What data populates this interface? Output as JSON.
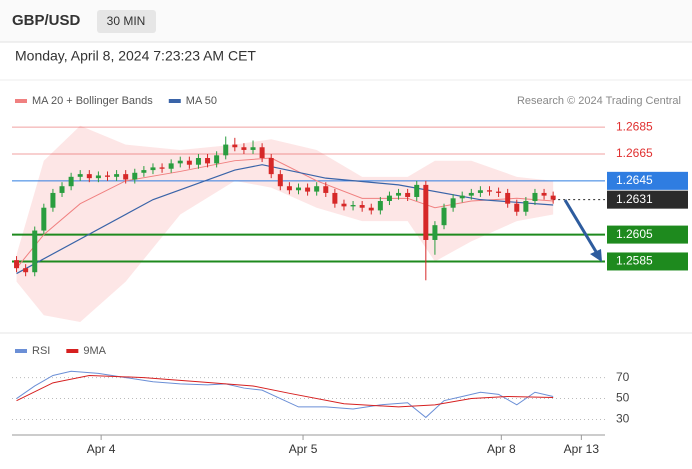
{
  "header": {
    "symbol": "GBP/USD",
    "interval": "30 MIN",
    "datetime": "Monday, April 8, 2024 7:23:23 AM CET"
  },
  "chart_data": [
    {
      "type": "candlestick",
      "source": "Research © 2024 Trading Central",
      "up_color": "#2a9d3f",
      "down_color": "#d62828",
      "x": [
        0,
        1,
        2,
        3,
        4,
        5,
        6,
        7,
        8,
        9,
        10,
        11,
        12,
        13,
        14,
        15,
        16,
        17,
        18,
        19,
        20,
        21,
        22,
        23,
        24,
        25,
        26,
        27,
        28,
        29,
        30,
        31,
        32,
        33,
        34,
        35,
        36,
        37,
        38,
        39,
        40,
        41,
        42,
        43,
        44,
        45,
        46,
        47,
        48,
        49,
        50,
        51,
        52,
        53,
        54,
        55,
        56,
        57,
        58,
        59
      ],
      "open": [
        1.2586,
        1.258,
        1.2577,
        1.2608,
        1.2625,
        1.2636,
        1.2641,
        1.2648,
        1.265,
        1.2647,
        1.2649,
        1.2648,
        1.265,
        1.2646,
        1.2651,
        1.2653,
        1.2655,
        1.2654,
        1.2658,
        1.266,
        1.2657,
        1.2662,
        1.2658,
        1.2664,
        1.2672,
        1.267,
        1.2668,
        1.267,
        1.2662,
        1.265,
        1.2641,
        1.2638,
        1.264,
        1.2637,
        1.2641,
        1.2636,
        1.2628,
        1.2626,
        1.2627,
        1.2625,
        1.2623,
        1.263,
        1.2634,
        1.2636,
        1.2633,
        1.2642,
        1.2601,
        1.2612,
        1.2625,
        1.2632,
        1.2634,
        1.2636,
        1.2638,
        1.2637,
        1.2636,
        1.2628,
        1.2622,
        1.263,
        1.2636,
        1.2634
      ],
      "high": [
        1.2589,
        1.2583,
        1.2611,
        1.2628,
        1.2639,
        1.2644,
        1.2651,
        1.2653,
        1.2653,
        1.2652,
        1.2652,
        1.2653,
        1.2653,
        1.2654,
        1.2656,
        1.2658,
        1.2658,
        1.2661,
        1.2663,
        1.2663,
        1.2665,
        1.2665,
        1.2667,
        1.2678,
        1.2677,
        1.2673,
        1.2675,
        1.2673,
        1.2665,
        1.2653,
        1.2644,
        1.2643,
        1.2643,
        1.2644,
        1.2644,
        1.2639,
        1.2631,
        1.263,
        1.263,
        1.2628,
        1.2633,
        1.2637,
        1.2639,
        1.2639,
        1.2645,
        1.2645,
        1.2615,
        1.2628,
        1.2635,
        1.2637,
        1.2639,
        1.2641,
        1.2641,
        1.264,
        1.2639,
        1.2631,
        1.2633,
        1.2639,
        1.2639,
        1.2637
      ],
      "low": [
        1.2577,
        1.2574,
        1.2574,
        1.2605,
        1.2622,
        1.2633,
        1.2638,
        1.2645,
        1.2644,
        1.2644,
        1.2645,
        1.2645,
        1.2643,
        1.2643,
        1.2648,
        1.265,
        1.2651,
        1.2651,
        1.2655,
        1.2654,
        1.2654,
        1.2655,
        1.2655,
        1.2661,
        1.2667,
        1.2665,
        1.2665,
        1.2659,
        1.2647,
        1.2638,
        1.2635,
        1.2635,
        1.2634,
        1.2634,
        1.2633,
        1.2625,
        1.2623,
        1.2623,
        1.2622,
        1.262,
        1.262,
        1.2627,
        1.2631,
        1.263,
        1.263,
        1.2571,
        1.259,
        1.2609,
        1.2622,
        1.2629,
        1.2631,
        1.2633,
        1.2634,
        1.2633,
        1.2625,
        1.2619,
        1.2619,
        1.2627,
        1.2631,
        1.2628
      ],
      "close": [
        1.258,
        1.2577,
        1.2608,
        1.2625,
        1.2636,
        1.2641,
        1.2648,
        1.265,
        1.2647,
        1.2649,
        1.2648,
        1.265,
        1.2646,
        1.2651,
        1.2653,
        1.2655,
        1.2654,
        1.2658,
        1.266,
        1.2657,
        1.2662,
        1.2658,
        1.2664,
        1.2672,
        1.267,
        1.2668,
        1.267,
        1.2662,
        1.265,
        1.2641,
        1.2638,
        1.264,
        1.2637,
        1.2641,
        1.2636,
        1.2628,
        1.2626,
        1.2627,
        1.2625,
        1.2623,
        1.263,
        1.2634,
        1.2636,
        1.2633,
        1.2642,
        1.2601,
        1.2612,
        1.2625,
        1.2632,
        1.2634,
        1.2636,
        1.2638,
        1.2637,
        1.2636,
        1.2628,
        1.2622,
        1.263,
        1.2636,
        1.2634,
        1.2631
      ],
      "series": [
        {
          "name": "MA 20 + Bollinger Bands",
          "color": "#f08080",
          "band_color": "#fde0e0",
          "x": [
            0,
            3,
            7,
            12,
            18,
            24,
            28,
            33,
            38,
            43,
            46,
            50,
            55,
            59
          ],
          "values": [
            1.258,
            1.2605,
            1.2628,
            1.2645,
            1.2652,
            1.266,
            1.2662,
            1.2645,
            1.2632,
            1.2632,
            1.2625,
            1.263,
            1.2632,
            1.263
          ],
          "upper": [
            1.259,
            1.266,
            1.2686,
            1.2672,
            1.2668,
            1.2672,
            1.2676,
            1.2668,
            1.2648,
            1.2648,
            1.266,
            1.266,
            1.2648,
            1.2645
          ],
          "lower": [
            1.257,
            1.2545,
            1.254,
            1.257,
            1.262,
            1.2645,
            1.264,
            1.2625,
            1.2615,
            1.2615,
            1.2585,
            1.26,
            1.2615,
            1.262
          ]
        },
        {
          "name": "MA 50",
          "color": "#3a64a8",
          "x": [
            0,
            15,
            24,
            27,
            34,
            42,
            51,
            59
          ],
          "values": [
            1.2576,
            1.2631,
            1.2653,
            1.2657,
            1.2647,
            1.2642,
            1.2631,
            1.2627
          ]
        }
      ],
      "levels": [
        {
          "value": 1.2685,
          "color": "#e03030",
          "boxed": false,
          "dashed": false
        },
        {
          "value": 1.2665,
          "color": "#e03030",
          "boxed": false,
          "dashed": false
        },
        {
          "value": 1.2645,
          "color": "#2f7de1",
          "boxed": true,
          "dashed": false
        },
        {
          "value": 1.2631,
          "color": "#2b2b2b",
          "boxed": true,
          "dashed": true
        },
        {
          "value": 1.2605,
          "color": "#1e8a1e",
          "boxed": true,
          "dashed": false
        },
        {
          "value": 1.2585,
          "color": "#1e8a1e",
          "boxed": true,
          "dashed": false
        }
      ],
      "xlim": [
        -0.5,
        64.7
      ],
      "ylim": [
        1.2534,
        1.2694
      ],
      "xticks": [
        {
          "value": 9.3,
          "label": "Apr 4"
        },
        {
          "value": 31.5,
          "label": "Apr 5"
        },
        {
          "value": 53.3,
          "label": "Apr 8"
        },
        {
          "value": 62.1,
          "label": "Apr 13"
        }
      ]
    },
    {
      "type": "line",
      "xlim": [
        -0.5,
        64.7
      ],
      "ylim": [
        20,
        82
      ],
      "yticks": [
        30,
        50,
        70
      ],
      "series": [
        {
          "name": "RSI",
          "color": "#6b8fd6",
          "x": [
            0,
            2,
            4,
            6,
            9,
            12,
            15,
            18,
            21,
            23,
            25,
            27,
            29,
            31,
            34,
            37,
            40,
            43,
            45,
            47,
            49,
            51,
            53,
            55,
            57,
            59
          ],
          "values": [
            50,
            62,
            72,
            76,
            74,
            70,
            66,
            64,
            63,
            64,
            60,
            58,
            50,
            42,
            42,
            40,
            44,
            46,
            32,
            48,
            52,
            56,
            54,
            44,
            56,
            52
          ]
        },
        {
          "name": "9MA",
          "color": "#d62020",
          "x": [
            0,
            4,
            8,
            14,
            20,
            26,
            30,
            36,
            42,
            46,
            50,
            54,
            59
          ],
          "values": [
            48,
            65,
            72,
            70,
            66,
            62,
            55,
            45,
            42,
            44,
            50,
            52,
            51
          ]
        }
      ]
    }
  ]
}
